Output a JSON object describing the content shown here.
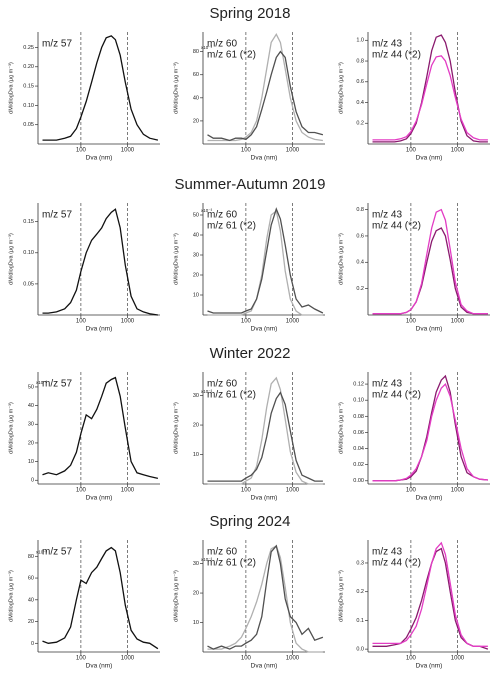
{
  "chart_data": [
    {
      "type": "line",
      "x": [
        15,
        20,
        30,
        45,
        60,
        80,
        100,
        130,
        170,
        220,
        280,
        350,
        450,
        550,
        700,
        900,
        1200,
        1600,
        2200,
        3000,
        4500
      ],
      "log_x": true,
      "xlim": [
        12,
        5000
      ],
      "xticks": [
        100,
        1000
      ],
      "vlines": [
        100,
        1000
      ],
      "xlabel": "Dva (nm)",
      "ylabel": "dM/dlogDva (μg m⁻³)",
      "ylim": [
        0,
        0.29
      ],
      "yticks": [
        0.05,
        {
          "value": 0.1,
          "label": "0.10"
        },
        0.15,
        {
          "value": 0.2,
          "label": "0.20"
        },
        0.25
      ],
      "series": [
        {
          "name": "m/z 57",
          "color": "#111111",
          "values": [
            0.01,
            0.01,
            0.01,
            0.015,
            0.02,
            0.04,
            0.07,
            0.11,
            0.16,
            0.21,
            0.25,
            0.275,
            0.28,
            0.27,
            0.23,
            0.16,
            0.09,
            0.05,
            0.025,
            0.015,
            0.01
          ]
        }
      ]
    },
    {
      "type": "line",
      "title": "Spring 2018",
      "x": [
        15,
        20,
        30,
        45,
        60,
        80,
        100,
        130,
        170,
        220,
        280,
        350,
        450,
        550,
        700,
        900,
        1200,
        1600,
        2200,
        3000,
        4500
      ],
      "log_x": true,
      "xlim": [
        12,
        5000
      ],
      "xticks": [
        100,
        1000
      ],
      "vlines": [
        100,
        1000
      ],
      "xlabel": "Dva (nm)",
      "ylabel": "dM/dlogDva (μg m⁻³)",
      "ylim": [
        0,
        97
      ],
      "yticks": [
        20,
        40,
        60,
        80
      ],
      "y_multiplier": "x10⁻³",
      "series": [
        {
          "name": "m/z 60",
          "color": "#b0b0b0",
          "values": [
            3,
            3,
            3,
            3,
            3,
            4,
            6,
            10,
            20,
            40,
            65,
            88,
            95,
            88,
            65,
            40,
            20,
            10,
            6,
            4,
            3
          ]
        },
        {
          "name": "m/z 61 (*2)",
          "color": "#505050",
          "values": [
            8,
            5,
            5,
            3,
            5,
            5,
            4,
            8,
            15,
            30,
            45,
            60,
            75,
            80,
            75,
            50,
            28,
            15,
            10,
            10,
            8
          ]
        }
      ]
    },
    {
      "type": "line",
      "x": [
        15,
        20,
        30,
        45,
        60,
        80,
        100,
        130,
        170,
        220,
        280,
        350,
        450,
        550,
        700,
        900,
        1200,
        1600,
        2200,
        3000,
        4500
      ],
      "log_x": true,
      "xlim": [
        12,
        5000
      ],
      "xticks": [
        100,
        1000
      ],
      "vlines": [
        100,
        1000
      ],
      "xlabel": "Dva (nm)",
      "ylabel": "dM/dlogDva (μg m⁻³)",
      "ylim": [
        0,
        1.08
      ],
      "yticks": [
        0.2,
        0.4,
        0.6,
        0.8,
        {
          "value": 1,
          "label": "1.0"
        }
      ],
      "series": [
        {
          "name": "m/z 43",
          "color": "#8a1a6e",
          "values": [
            0.02,
            0.02,
            0.02,
            0.02,
            0.03,
            0.05,
            0.1,
            0.2,
            0.4,
            0.65,
            0.9,
            1.03,
            1.05,
            0.98,
            0.8,
            0.5,
            0.22,
            0.08,
            0.03,
            0.02,
            0.02
          ]
        },
        {
          "name": "m/z 44 (*2)",
          "color": "#e33cc4",
          "values": [
            0.04,
            0.04,
            0.04,
            0.04,
            0.05,
            0.07,
            0.12,
            0.22,
            0.38,
            0.58,
            0.76,
            0.84,
            0.85,
            0.8,
            0.66,
            0.45,
            0.24,
            0.11,
            0.06,
            0.04,
            0.04
          ]
        }
      ]
    },
    {
      "type": "line",
      "x": [
        15,
        20,
        30,
        45,
        60,
        80,
        100,
        130,
        170,
        220,
        280,
        350,
        450,
        550,
        700,
        900,
        1200,
        1600,
        2200,
        3000,
        4500
      ],
      "log_x": true,
      "xlim": [
        12,
        5000
      ],
      "xticks": [
        100,
        1000
      ],
      "vlines": [
        100,
        1000
      ],
      "xlabel": "Dva (nm)",
      "ylabel": "dM/dlogDva (μg m⁻³)",
      "ylim": [
        0,
        0.18
      ],
      "yticks": [
        0.05,
        {
          "value": 0.1,
          "label": "0.10"
        },
        0.15
      ],
      "series": [
        {
          "name": "m/z 57",
          "color": "#111111",
          "values": [
            0.003,
            0.003,
            0.005,
            0.01,
            0.02,
            0.04,
            0.07,
            0.1,
            0.12,
            0.13,
            0.14,
            0.155,
            0.165,
            0.17,
            0.14,
            0.08,
            0.03,
            0.01,
            0.005,
            0.002,
            0
          ]
        }
      ]
    },
    {
      "type": "line",
      "title": "Summer-Autumn 2019",
      "x": [
        15,
        20,
        30,
        45,
        60,
        80,
        100,
        130,
        170,
        220,
        280,
        350,
        450,
        550,
        700,
        900,
        1200,
        1600,
        2200,
        3000,
        4500
      ],
      "log_x": true,
      "xlim": [
        12,
        5000
      ],
      "xticks": [
        100,
        1000
      ],
      "vlines": [
        100,
        1000
      ],
      "xlabel": "Dva (nm)",
      "ylabel": "dM/dlogDva (μg m⁻³)",
      "ylim": [
        0,
        56
      ],
      "yticks": [
        10,
        20,
        30,
        40,
        50
      ],
      "y_multiplier": "x10⁻³",
      "series": [
        {
          "name": "m/z 60",
          "color": "#b0b0b0",
          "values": [
            0,
            0,
            0,
            0,
            0,
            0,
            1,
            2,
            8,
            20,
            38,
            50,
            52,
            42,
            22,
            8,
            2,
            0,
            0,
            0,
            0
          ]
        },
        {
          "name": "m/z 61 (*2)",
          "color": "#505050",
          "values": [
            2,
            1,
            1,
            1,
            1,
            1,
            2,
            3,
            8,
            18,
            32,
            45,
            53,
            48,
            35,
            20,
            8,
            4,
            5,
            3,
            1
          ]
        }
      ]
    },
    {
      "type": "line",
      "x": [
        15,
        20,
        30,
        45,
        60,
        80,
        100,
        130,
        170,
        220,
        280,
        350,
        450,
        550,
        700,
        900,
        1200,
        1600,
        2200,
        3000,
        4500
      ],
      "log_x": true,
      "xlim": [
        12,
        5000
      ],
      "xticks": [
        100,
        1000
      ],
      "vlines": [
        100,
        1000
      ],
      "xlabel": "Dva (nm)",
      "ylabel": "dM/dlogDva (μg m⁻³)",
      "ylim": [
        0,
        0.85
      ],
      "yticks": [
        0.2,
        0.4,
        0.6,
        0.8
      ],
      "series": [
        {
          "name": "m/z 43",
          "color": "#8a1a6e",
          "values": [
            0.01,
            0.01,
            0.01,
            0.01,
            0.01,
            0.02,
            0.04,
            0.1,
            0.22,
            0.4,
            0.56,
            0.64,
            0.66,
            0.6,
            0.42,
            0.2,
            0.06,
            0.02,
            0.01,
            0.01,
            0.01
          ]
        },
        {
          "name": "m/z 44 (*2)",
          "color": "#e33cc4",
          "values": [
            0.01,
            0.01,
            0.01,
            0.01,
            0.01,
            0.02,
            0.04,
            0.1,
            0.24,
            0.46,
            0.66,
            0.78,
            0.8,
            0.72,
            0.5,
            0.25,
            0.08,
            0.03,
            0.01,
            0.01,
            0.01
          ]
        }
      ]
    },
    {
      "type": "line",
      "x": [
        15,
        20,
        30,
        45,
        60,
        80,
        100,
        130,
        170,
        220,
        280,
        350,
        450,
        550,
        700,
        900,
        1200,
        1600,
        2200,
        3000,
        4500
      ],
      "log_x": true,
      "xlim": [
        12,
        5000
      ],
      "xticks": [
        100,
        1000
      ],
      "vlines": [
        100,
        1000
      ],
      "xlabel": "Dva (nm)",
      "ylabel": "dM/dlogDva (μg m⁻³)",
      "ylim": [
        -2,
        58
      ],
      "yticks": [
        0,
        10,
        20,
        30,
        40,
        50
      ],
      "y_multiplier": "x10⁻³",
      "series": [
        {
          "name": "m/z 57",
          "color": "#111111",
          "values": [
            3,
            4,
            3,
            5,
            8,
            15,
            25,
            35,
            33,
            38,
            45,
            52,
            54,
            55,
            45,
            28,
            10,
            4,
            3,
            2,
            1
          ]
        }
      ]
    },
    {
      "type": "line",
      "title": "Winter 2022",
      "x": [
        15,
        20,
        30,
        45,
        60,
        80,
        100,
        130,
        170,
        220,
        280,
        350,
        450,
        550,
        700,
        900,
        1200,
        1600,
        2200,
        3000,
        4500
      ],
      "log_x": true,
      "xlim": [
        12,
        5000
      ],
      "xticks": [
        100,
        1000
      ],
      "vlines": [
        100,
        1000
      ],
      "xlabel": "Dva (nm)",
      "ylabel": "dM/dlogDva (μg m⁻³)",
      "ylim": [
        0,
        38
      ],
      "yticks": [
        10,
        20,
        30
      ],
      "y_multiplier": "x10⁻³",
      "series": [
        {
          "name": "m/z 60",
          "color": "#b0b0b0",
          "values": [
            0,
            0,
            0,
            0,
            0,
            0,
            1,
            2,
            6,
            15,
            26,
            34,
            36,
            32,
            22,
            11,
            4,
            1,
            0,
            0,
            0
          ]
        },
        {
          "name": "m/z 61 (*2)",
          "color": "#505050",
          "values": [
            1,
            1,
            1,
            1,
            1,
            1,
            2,
            3,
            5,
            9,
            16,
            24,
            29,
            31,
            27,
            18,
            8,
            3,
            2,
            1,
            1
          ]
        }
      ]
    },
    {
      "type": "line",
      "x": [
        15,
        20,
        30,
        45,
        60,
        80,
        100,
        130,
        170,
        220,
        280,
        350,
        450,
        550,
        700,
        900,
        1200,
        1600,
        2200,
        3000,
        4500
      ],
      "log_x": true,
      "xlim": [
        12,
        5000
      ],
      "xticks": [
        100,
        1000
      ],
      "vlines": [
        100,
        1000
      ],
      "xlabel": "Dva (nm)",
      "ylabel": "dM/dlogDva (μg m⁻³)",
      "ylim": [
        -0.004,
        0.135
      ],
      "yticks": [
        {
          "value": 0,
          "label": "0.00"
        },
        0.02,
        0.04,
        0.06,
        0.08,
        {
          "value": 0.1,
          "label": "0.10"
        },
        0.12
      ],
      "series": [
        {
          "name": "m/z 43",
          "color": "#8a1a6e",
          "values": [
            0,
            0,
            0,
            0,
            0.001,
            0.002,
            0.005,
            0.012,
            0.03,
            0.055,
            0.085,
            0.11,
            0.125,
            0.13,
            0.11,
            0.07,
            0.03,
            0.01,
            0.005,
            0.002,
            0.001
          ]
        },
        {
          "name": "m/z 44 (*2)",
          "color": "#e33cc4",
          "values": [
            0,
            0,
            0,
            0,
            0.001,
            0.003,
            0.007,
            0.015,
            0.03,
            0.05,
            0.08,
            0.1,
            0.115,
            0.12,
            0.105,
            0.075,
            0.04,
            0.015,
            0.005,
            0.002,
            0.001
          ]
        }
      ]
    },
    {
      "type": "line",
      "x": [
        15,
        20,
        30,
        45,
        60,
        80,
        100,
        130,
        170,
        220,
        280,
        350,
        450,
        550,
        700,
        900,
        1200,
        1600,
        2200,
        3000,
        4500
      ],
      "log_x": true,
      "xlim": [
        12,
        5000
      ],
      "xticks": [
        100,
        1000
      ],
      "vlines": [
        100,
        1000
      ],
      "xlabel": "Dva (nm)",
      "ylabel": "dM/dlogDva (μg m⁻³)",
      "ylim": [
        -8,
        95
      ],
      "yticks": [
        0,
        20,
        40,
        60,
        80
      ],
      "y_multiplier": "x10⁻³",
      "series": [
        {
          "name": "m/z 57",
          "color": "#111111",
          "values": [
            2,
            0,
            1,
            5,
            15,
            40,
            58,
            55,
            65,
            70,
            78,
            85,
            88,
            85,
            65,
            35,
            12,
            4,
            1,
            0,
            -5
          ]
        }
      ]
    },
    {
      "type": "line",
      "title": "Spring 2024",
      "x": [
        15,
        20,
        30,
        45,
        60,
        80,
        100,
        130,
        170,
        220,
        280,
        350,
        450,
        550,
        700,
        900,
        1200,
        1600,
        2200,
        3000,
        4500
      ],
      "log_x": true,
      "xlim": [
        12,
        5000
      ],
      "xticks": [
        100,
        1000
      ],
      "vlines": [
        100,
        1000
      ],
      "xlabel": "Dva (nm)",
      "ylabel": "dM/dlogDva (μg m⁻³)",
      "ylim": [
        0,
        38
      ],
      "yticks": [
        10,
        20,
        30
      ],
      "y_multiplier": "x10⁻³",
      "series": [
        {
          "name": "m/z 60",
          "color": "#b0b0b0",
          "values": [
            1,
            1,
            1,
            2,
            3,
            5,
            8,
            12,
            17,
            23,
            30,
            35,
            36,
            32,
            22,
            10,
            3,
            1,
            0,
            0,
            0
          ]
        },
        {
          "name": "m/z 61 (*2)",
          "color": "#505050",
          "values": [
            2,
            1,
            2,
            1,
            2,
            2,
            3,
            4,
            6,
            12,
            24,
            34,
            36,
            30,
            18,
            12,
            10,
            6,
            8,
            4,
            5
          ]
        }
      ]
    },
    {
      "type": "line",
      "x": [
        15,
        20,
        30,
        45,
        60,
        80,
        100,
        130,
        170,
        220,
        280,
        350,
        450,
        550,
        700,
        900,
        1200,
        1600,
        2200,
        3000,
        4500
      ],
      "log_x": true,
      "xlim": [
        12,
        5000
      ],
      "xticks": [
        100,
        1000
      ],
      "vlines": [
        100,
        1000
      ],
      "xlabel": "Dva (nm)",
      "ylabel": "dM/dlogDva (μg m⁻³)",
      "ylim": [
        -0.01,
        0.38
      ],
      "yticks": [
        {
          "value": 0,
          "label": "0.0"
        },
        0.1,
        0.2,
        0.3
      ],
      "series": [
        {
          "name": "m/z 43",
          "color": "#8a1a6e",
          "values": [
            0.01,
            0.01,
            0.01,
            0.015,
            0.02,
            0.04,
            0.07,
            0.11,
            0.17,
            0.24,
            0.3,
            0.34,
            0.35,
            0.3,
            0.2,
            0.1,
            0.04,
            0.02,
            0.01,
            0.01,
            0
          ]
        },
        {
          "name": "m/z 44 (*2)",
          "color": "#e33cc4",
          "values": [
            0.02,
            0.02,
            0.02,
            0.02,
            0.02,
            0.03,
            0.05,
            0.08,
            0.14,
            0.22,
            0.3,
            0.35,
            0.37,
            0.33,
            0.23,
            0.12,
            0.05,
            0.02,
            0.01,
            0.01,
            0.01
          ]
        }
      ]
    }
  ]
}
